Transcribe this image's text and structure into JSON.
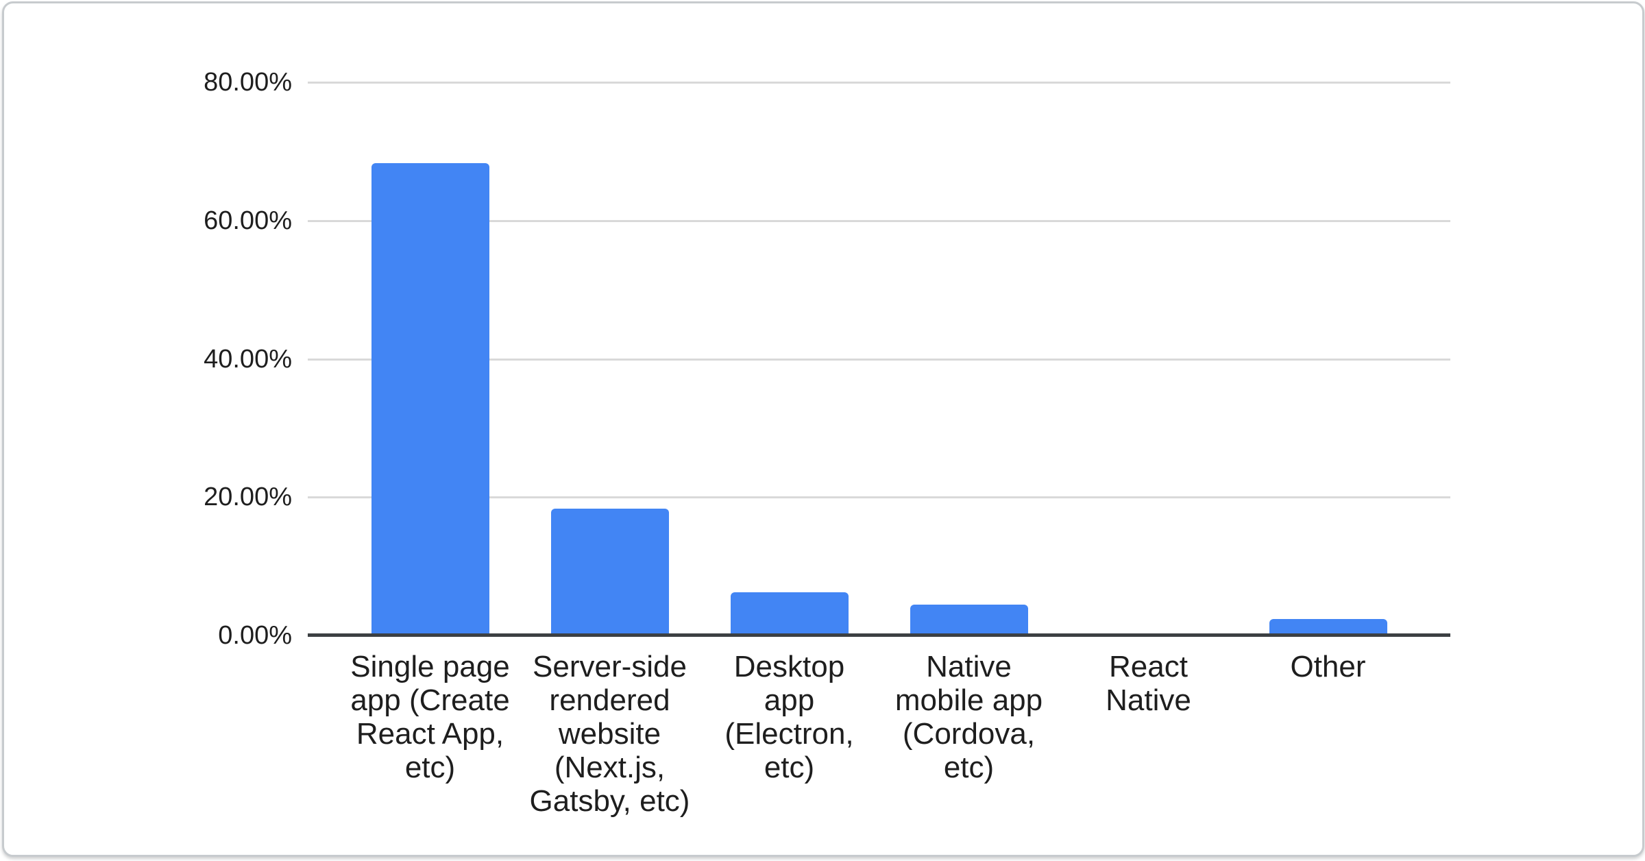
{
  "chart_data": {
    "type": "bar",
    "title": "",
    "legend": "none",
    "grid": true,
    "categories": [
      "Single page\napp (Create\nReact App,\netc)",
      "Server-side\nrendered\nwebsite\n(Next.js,\nGatsby, etc)",
      "Desktop\napp\n(Electron,\netc)",
      "Native\nmobile app\n(Cordova,\netc)",
      "React\nNative",
      "Other"
    ],
    "values": [
      68.3,
      18.3,
      6.2,
      4.5,
      0,
      2.4
    ],
    "value_unit": "%",
    "y_axis": {
      "min": 0,
      "max": 80,
      "tick_step": 20,
      "tick_labels_top_to_bottom": [
        "80.00%",
        "60.00%",
        "40.00%",
        "20.00%",
        "0.00%"
      ]
    },
    "x_axis": {
      "label": ""
    }
  },
  "colors": {
    "bar": "#4285f4",
    "gridline": "#d9d9d9",
    "axis_line": "#3c4043",
    "text": "#1e1e1e",
    "card_border": "#c7cbce",
    "card_background": "#ffffff"
  }
}
